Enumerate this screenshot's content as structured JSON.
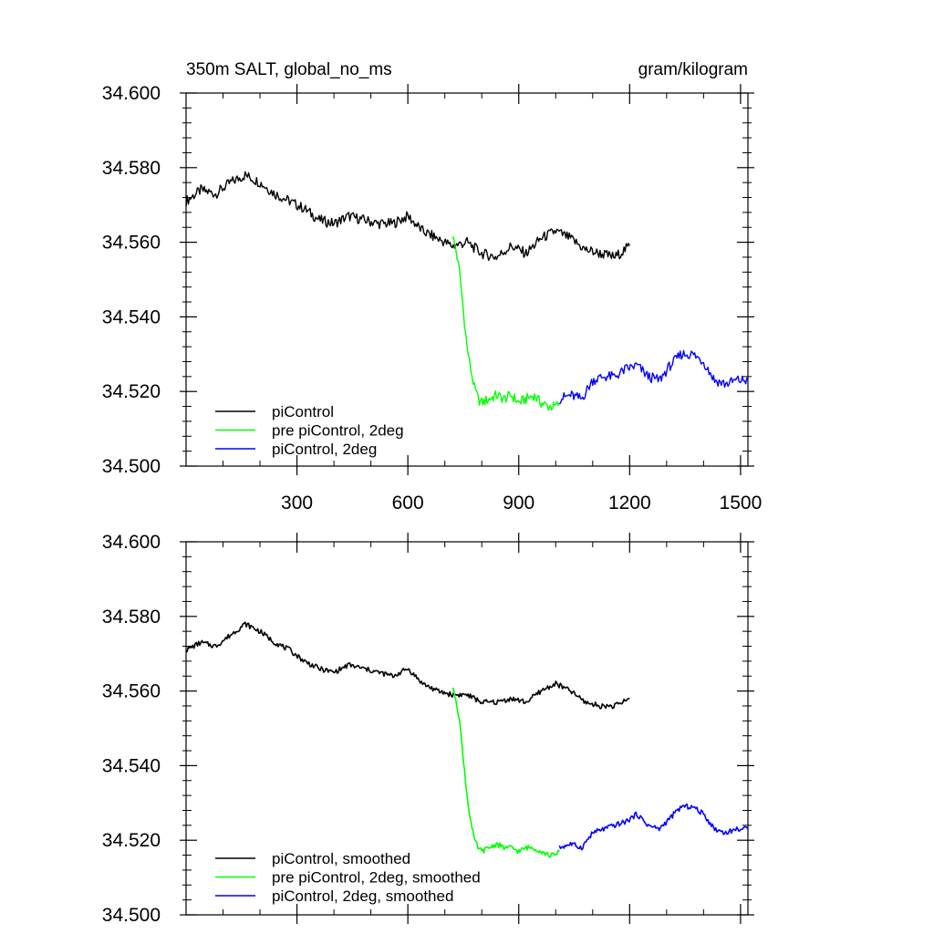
{
  "chart_data": [
    {
      "type": "line",
      "title": "350m SALT, global_no_ms",
      "units": "gram/kilogram",
      "xlim": [
        0,
        1520
      ],
      "ylim": [
        34.5,
        34.6
      ],
      "x_ticks": [
        300,
        600,
        900,
        1200,
        1500
      ],
      "y_ticks": [
        "34.500",
        "34.520",
        "34.540",
        "34.560",
        "34.580",
        "34.600"
      ],
      "legend_position": "bottom-left",
      "series": [
        {
          "name": "piControl",
          "color": "#000000",
          "x": [
            0,
            40,
            80,
            120,
            160,
            200,
            240,
            280,
            320,
            360,
            400,
            440,
            480,
            520,
            560,
            600,
            640,
            680,
            720,
            760,
            800,
            840,
            880,
            920,
            960,
            1000,
            1040,
            1080,
            1120,
            1160,
            1200
          ],
          "y": [
            34.571,
            34.574,
            34.573,
            34.576,
            34.578,
            34.576,
            34.573,
            34.571,
            34.569,
            34.566,
            34.565,
            34.567,
            34.566,
            34.565,
            34.565,
            34.567,
            34.563,
            34.561,
            34.559,
            34.56,
            34.557,
            34.556,
            34.559,
            34.557,
            34.561,
            34.563,
            34.561,
            34.558,
            34.557,
            34.556,
            34.559
          ]
        },
        {
          "name": "pre piControl, 2deg",
          "color": "#00ff00",
          "x": [
            720,
            730,
            740,
            750,
            760,
            770,
            780,
            790,
            800,
            820,
            840,
            860,
            880,
            900,
            920,
            940,
            960,
            980,
            1000,
            1010
          ],
          "y": [
            34.562,
            34.558,
            34.552,
            34.542,
            34.532,
            34.526,
            34.521,
            34.518,
            34.517,
            34.518,
            34.519,
            34.518,
            34.519,
            34.517,
            34.518,
            34.519,
            34.517,
            34.516,
            34.516,
            34.517
          ]
        },
        {
          "name": "piControl, 2deg",
          "color": "#0000ff",
          "x": [
            1010,
            1040,
            1070,
            1100,
            1130,
            1160,
            1190,
            1220,
            1250,
            1280,
            1310,
            1340,
            1370,
            1400,
            1430,
            1460,
            1490,
            1520
          ],
          "y": [
            34.518,
            34.519,
            34.518,
            34.523,
            34.524,
            34.524,
            34.526,
            34.527,
            34.524,
            34.523,
            34.527,
            34.53,
            34.53,
            34.528,
            34.523,
            34.522,
            34.523,
            34.523
          ]
        }
      ]
    },
    {
      "type": "line",
      "xlim": [
        0,
        1520
      ],
      "ylim": [
        34.5,
        34.6
      ],
      "y_ticks": [
        "34.500",
        "34.520",
        "34.540",
        "34.560",
        "34.580",
        "34.600"
      ],
      "legend_position": "bottom-left",
      "series": [
        {
          "name": "piControl, smoothed",
          "color": "#000000",
          "x": [
            0,
            40,
            80,
            120,
            160,
            200,
            240,
            280,
            320,
            360,
            400,
            440,
            480,
            520,
            560,
            600,
            640,
            680,
            720,
            760,
            800,
            840,
            880,
            920,
            960,
            1000,
            1040,
            1080,
            1120,
            1160,
            1200
          ],
          "y": [
            34.571,
            34.573,
            34.572,
            34.575,
            34.578,
            34.576,
            34.573,
            34.571,
            34.568,
            34.566,
            34.565,
            34.567,
            34.566,
            34.565,
            34.564,
            34.566,
            34.562,
            34.56,
            34.559,
            34.559,
            34.557,
            34.557,
            34.558,
            34.557,
            34.56,
            34.562,
            34.56,
            34.557,
            34.556,
            34.556,
            34.558
          ]
        },
        {
          "name": "pre piControl, 2deg, smoothed",
          "color": "#00ff00",
          "x": [
            720,
            730,
            740,
            750,
            760,
            770,
            780,
            790,
            800,
            820,
            840,
            860,
            880,
            900,
            920,
            940,
            960,
            980,
            1000,
            1010
          ],
          "y": [
            34.561,
            34.558,
            34.552,
            34.542,
            34.532,
            34.525,
            34.52,
            34.518,
            34.517,
            34.518,
            34.519,
            34.518,
            34.518,
            34.517,
            34.518,
            34.518,
            34.517,
            34.516,
            34.516,
            34.517
          ]
        },
        {
          "name": "piControl, 2deg, smoothed",
          "color": "#0000ff",
          "x": [
            1010,
            1040,
            1070,
            1100,
            1130,
            1160,
            1190,
            1220,
            1250,
            1280,
            1310,
            1340,
            1370,
            1400,
            1430,
            1460,
            1490,
            1520
          ],
          "y": [
            34.518,
            34.519,
            34.518,
            34.522,
            34.523,
            34.524,
            34.525,
            34.527,
            34.524,
            34.523,
            34.526,
            34.529,
            34.529,
            34.527,
            34.523,
            34.522,
            34.523,
            34.523
          ]
        }
      ]
    }
  ]
}
